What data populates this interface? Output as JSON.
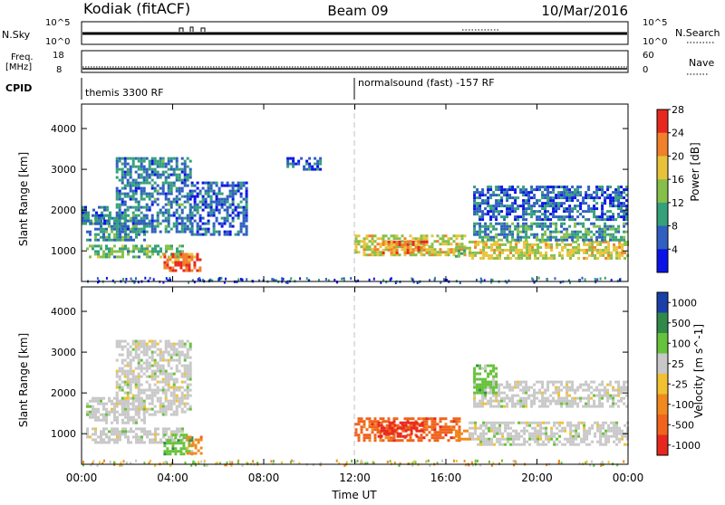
{
  "header": {
    "station": "Kodiak (fitACF)",
    "beam": "Beam 09",
    "date": "10/Mar/2016"
  },
  "summary_panels": {
    "nsky_label": "N.Sky",
    "nsky_ticks": [
      "10^5",
      "10^0"
    ],
    "nsearch_label": "N.Search",
    "nsearch_ticks": [
      "10^5",
      "10^0"
    ],
    "freq_label": "Freq.",
    "freq_unit": "[MHz]",
    "freq_ticks": [
      "18",
      "8"
    ],
    "nave_label": "Nave",
    "nave_ticks": [
      "60",
      "0"
    ],
    "cpid_label": "CPID",
    "cpid_segments": [
      {
        "label": "themis 3300 RF",
        "start_hour": 0,
        "end_hour": 12
      },
      {
        "label": "normalsound (fast) -157 RF",
        "start_hour": 12,
        "end_hour": 24
      }
    ]
  },
  "chart_data": [
    {
      "type": "heatmap",
      "name": "power",
      "ylabel": "Slant Range [km]",
      "xlim": [
        0,
        24
      ],
      "ylim": [
        250,
        4600
      ],
      "yticks": [
        1000,
        2000,
        3000,
        4000
      ],
      "colorbar": {
        "label": "Power [dB]",
        "ticks": [
          "4",
          "8",
          "12",
          "16",
          "20",
          "24",
          "28"
        ],
        "range": [
          0,
          32
        ],
        "colors": [
          "#0a14e6",
          "#2f5fc0",
          "#35a07a",
          "#86c04a",
          "#e8c33a",
          "#f0802a",
          "#e8281e"
        ]
      },
      "echo_bands": [
        {
          "t0": 0.2,
          "t1": 4.4,
          "r0": 850,
          "r1": 1150,
          "level": 14
        },
        {
          "t0": 0.2,
          "t1": 2.8,
          "r0": 1300,
          "r1": 1900,
          "level": 10
        },
        {
          "t0": 1.5,
          "t1": 4.8,
          "r0": 1500,
          "r1": 3300,
          "level": 9
        },
        {
          "t0": 3.6,
          "t1": 5.2,
          "r0": 550,
          "r1": 950,
          "level": 26
        },
        {
          "t0": 0.0,
          "t1": 1.2,
          "r0": 1700,
          "r1": 2100,
          "level": 8
        },
        {
          "t0": 4.8,
          "t1": 7.2,
          "r0": 1400,
          "r1": 2700,
          "level": 6
        },
        {
          "t0": 12.0,
          "t1": 16.8,
          "r0": 900,
          "r1": 1400,
          "level": 19
        },
        {
          "t0": 13.2,
          "t1": 15.2,
          "r0": 950,
          "r1": 1250,
          "level": 25
        },
        {
          "t0": 16.4,
          "t1": 17.0,
          "r0": 900,
          "r1": 1100,
          "level": 14
        },
        {
          "t0": 17.0,
          "t1": 24.0,
          "r0": 850,
          "r1": 1250,
          "level": 19
        },
        {
          "t0": 17.2,
          "t1": 24.0,
          "r0": 1300,
          "r1": 1700,
          "level": 11
        },
        {
          "t0": 17.2,
          "t1": 24.0,
          "r0": 1800,
          "r1": 2600,
          "level": 7
        },
        {
          "t0": 9.0,
          "t1": 10.5,
          "r0": 3000,
          "r1": 3300,
          "level": 5
        }
      ]
    },
    {
      "type": "heatmap",
      "name": "velocity",
      "ylabel": "Slant Range [km]",
      "xlabel": "Time UT",
      "xlim": [
        0,
        24
      ],
      "ylim": [
        250,
        4600
      ],
      "yticks": [
        1000,
        2000,
        3000,
        4000
      ],
      "xticks": [
        "00:00",
        "04:00",
        "08:00",
        "12:00",
        "16:00",
        "20:00",
        "00:00"
      ],
      "colorbar": {
        "label": "Velocity [m s^-1]",
        "ticks": [
          "1000",
          "500",
          "100",
          "25",
          "-25",
          "-100",
          "-500",
          "-1000"
        ],
        "colors": [
          "#1a3fa8",
          "#2f8a4a",
          "#66c23a",
          "#c8c8c8",
          "#f0c232",
          "#f08a1e",
          "#f0641e",
          "#e8281e"
        ]
      },
      "echo_bands": [
        {
          "t0": 0.2,
          "t1": 4.4,
          "r0": 800,
          "r1": 1150,
          "class": 3
        },
        {
          "t0": 0.2,
          "t1": 2.8,
          "r0": 1300,
          "r1": 1900,
          "class": 3
        },
        {
          "t0": 1.5,
          "t1": 4.8,
          "r0": 1500,
          "r1": 3300,
          "class": 3
        },
        {
          "t0": 3.6,
          "t1": 4.8,
          "r0": 500,
          "r1": 1000,
          "class": 2
        },
        {
          "t0": 4.6,
          "t1": 5.2,
          "r0": 550,
          "r1": 950,
          "class": 5
        },
        {
          "t0": 12.0,
          "t1": 16.6,
          "r0": 850,
          "r1": 1400,
          "class": 6
        },
        {
          "t0": 13.0,
          "t1": 15.0,
          "r0": 950,
          "r1": 1300,
          "class": 7
        },
        {
          "t0": 16.4,
          "t1": 17.2,
          "r0": 850,
          "r1": 1100,
          "class": 5
        },
        {
          "t0": 17.0,
          "t1": 24.0,
          "r0": 750,
          "r1": 1300,
          "class": 3
        },
        {
          "t0": 17.2,
          "t1": 24.0,
          "r0": 1700,
          "r1": 2300,
          "class": 3
        },
        {
          "t0": 17.2,
          "t1": 18.2,
          "r0": 2000,
          "r1": 2700,
          "class": 2
        }
      ]
    }
  ],
  "colors": {
    "reference_line": "#c0c0c0",
    "axis": "#000000"
  }
}
